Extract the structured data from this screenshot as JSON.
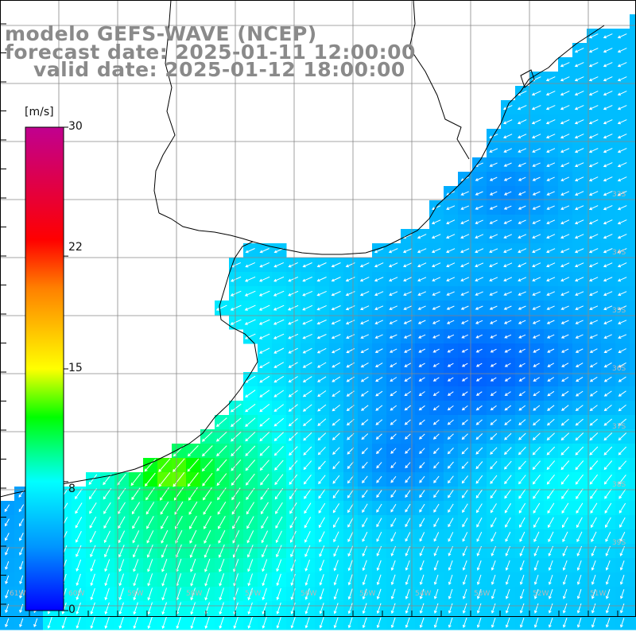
{
  "header": {
    "line1": "modelo GEFS-WAVE (NCEP)",
    "line2": "forecast date: 2025-01-11 12:00:00",
    "line3": "valid date: 2025-01-12 18:00:00"
  },
  "colorbar": {
    "unit": "[m/s]",
    "ticks": [
      "30",
      "22",
      "15",
      "8",
      "0"
    ],
    "tick_values": [
      30,
      22,
      15,
      8,
      0
    ],
    "min": 0,
    "max": 30,
    "stops": [
      "#0000ff",
      "#0096ff",
      "#00ffff",
      "#00ff00",
      "#ffff00",
      "#ff8000",
      "#ff0000",
      "#c00090"
    ]
  },
  "lat_labels": [
    "33S",
    "34S",
    "35S",
    "36S",
    "37S",
    "38S",
    "39S"
  ],
  "lon_labels": [
    "61W",
    "60W",
    "59W",
    "58W",
    "57W",
    "56W",
    "55W",
    "54W",
    "53W",
    "52W",
    "51W"
  ],
  "colors": {
    "land": "#ffffff",
    "coast": "#000000",
    "grid": "#888888",
    "arrows": "#ffffff",
    "title": "#8a8a8a"
  }
}
